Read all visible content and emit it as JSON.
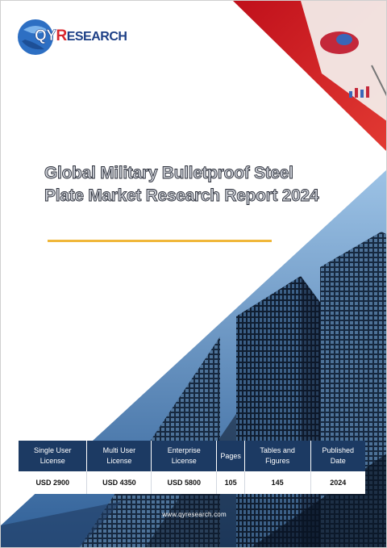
{
  "brand": {
    "logo_text_qy": "QY",
    "logo_text_r": "R",
    "logo_text_rest": "ESEARCH",
    "colors": {
      "navy": "#1d3f86",
      "red": "#d8262d",
      "accent_gold": "#f0b73a",
      "header_blue": "#1c3a63"
    }
  },
  "report": {
    "title": "Global Military Bulletproof Steel Plate Market Research Report 2024"
  },
  "license_table": {
    "headers": [
      "Single User License",
      "Multi User License",
      "Enterprise License",
      "Pages",
      "Tables and Figures",
      "Published Date"
    ],
    "values": [
      "USD 2900",
      "USD 4350",
      "USD 5800",
      "105",
      "145",
      "2024"
    ]
  },
  "footer": {
    "url": "www.qyresearch.com"
  }
}
